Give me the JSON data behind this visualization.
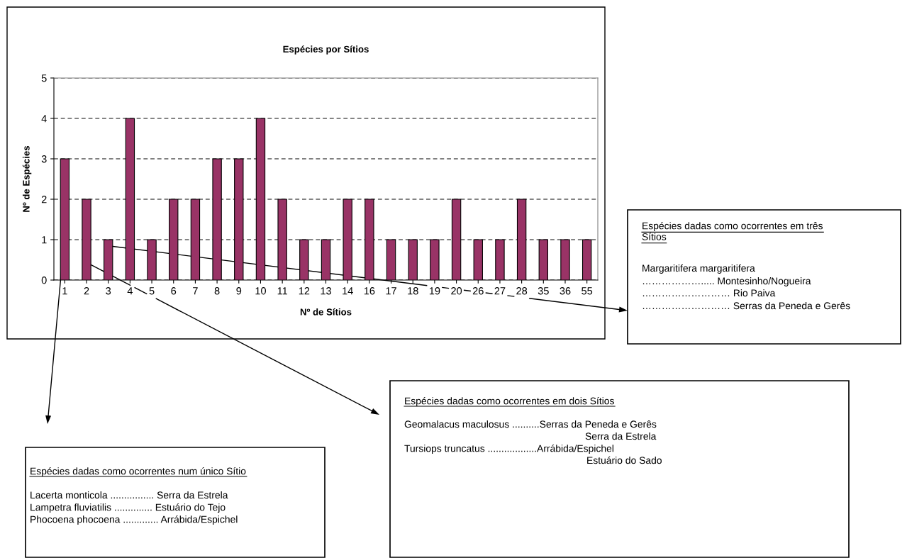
{
  "chart_data": {
    "type": "bar",
    "title": "Espécies por Sítios",
    "xlabel": "Nº de Sítios",
    "ylabel": "Nº de Espécies",
    "categories": [
      "1",
      "2",
      "3",
      "4",
      "5",
      "6",
      "7",
      "8",
      "9",
      "10",
      "11",
      "12",
      "13",
      "14",
      "16",
      "17",
      "18",
      "19",
      "20",
      "26",
      "27",
      "28",
      "35",
      "36",
      "55"
    ],
    "values": [
      3,
      2,
      1,
      4,
      1,
      2,
      2,
      3,
      3,
      4,
      2,
      1,
      1,
      2,
      2,
      1,
      1,
      1,
      2,
      1,
      1,
      2,
      1,
      1,
      1
    ],
    "color": "#993366",
    "ylim": [
      0,
      5
    ],
    "yticks": [
      0,
      1,
      2,
      3,
      4,
      5
    ],
    "grid": "y",
    "line_style": "dashed",
    "annotations": [
      "Espécies dadas como ocorrentes em três Sítios",
      "Margaritifera margaritifera",
      "………………..... Montesinho/Nogueira",
      "……………………… Rio Paiva",
      "……………………… Serras da Peneda e Gerês",
      "Espécies dadas como ocorrentes em dois Sítios",
      "Geomalacus maculosus ..........Serras da Peneda e Gerês",
      "Serra da Estrela",
      "Tursiops truncatus ..................Arrábida/Espichel",
      "Estuário do Sado",
      "Espécies dadas como ocorrentes num único Sítio",
      "Lacerta monticola ................ Serra da Estrela",
      "Lampetra fluviatilis .............. Estuário do Tejo",
      "Phocoena phocoena ............. Arrábida/Espichel"
    ]
  }
}
